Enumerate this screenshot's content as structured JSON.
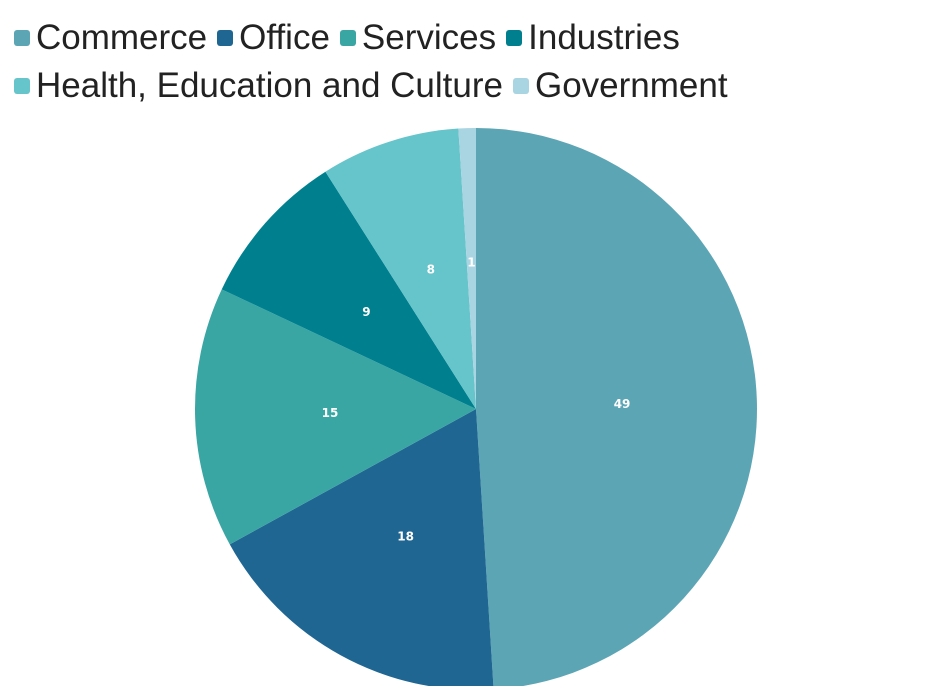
{
  "chart_data": {
    "type": "pie",
    "legend_position": "top-left",
    "slices": [
      {
        "label": "Commerce",
        "value": 49,
        "value_label": "49",
        "color": "#5ca5b5"
      },
      {
        "label": "Office",
        "value": 18,
        "value_label": "18",
        "color": "#1f6692"
      },
      {
        "label": "Services",
        "value": 15,
        "value_label": "15",
        "color": "#39a6a4"
      },
      {
        "label": "Industries",
        "value": 9,
        "value_label": "9",
        "color": "#00808e"
      },
      {
        "label": "Health, Education and Culture",
        "value": 8,
        "value_label": "8",
        "color": "#66c4cb"
      },
      {
        "label": "Government",
        "value": 1,
        "value_label": "1",
        "color": "#a9d4e2"
      }
    ],
    "label_colors": [
      "#ffffff",
      "#ffffff",
      "#ffffff",
      "#ffffff",
      "#ffffff",
      "#000000"
    ]
  }
}
